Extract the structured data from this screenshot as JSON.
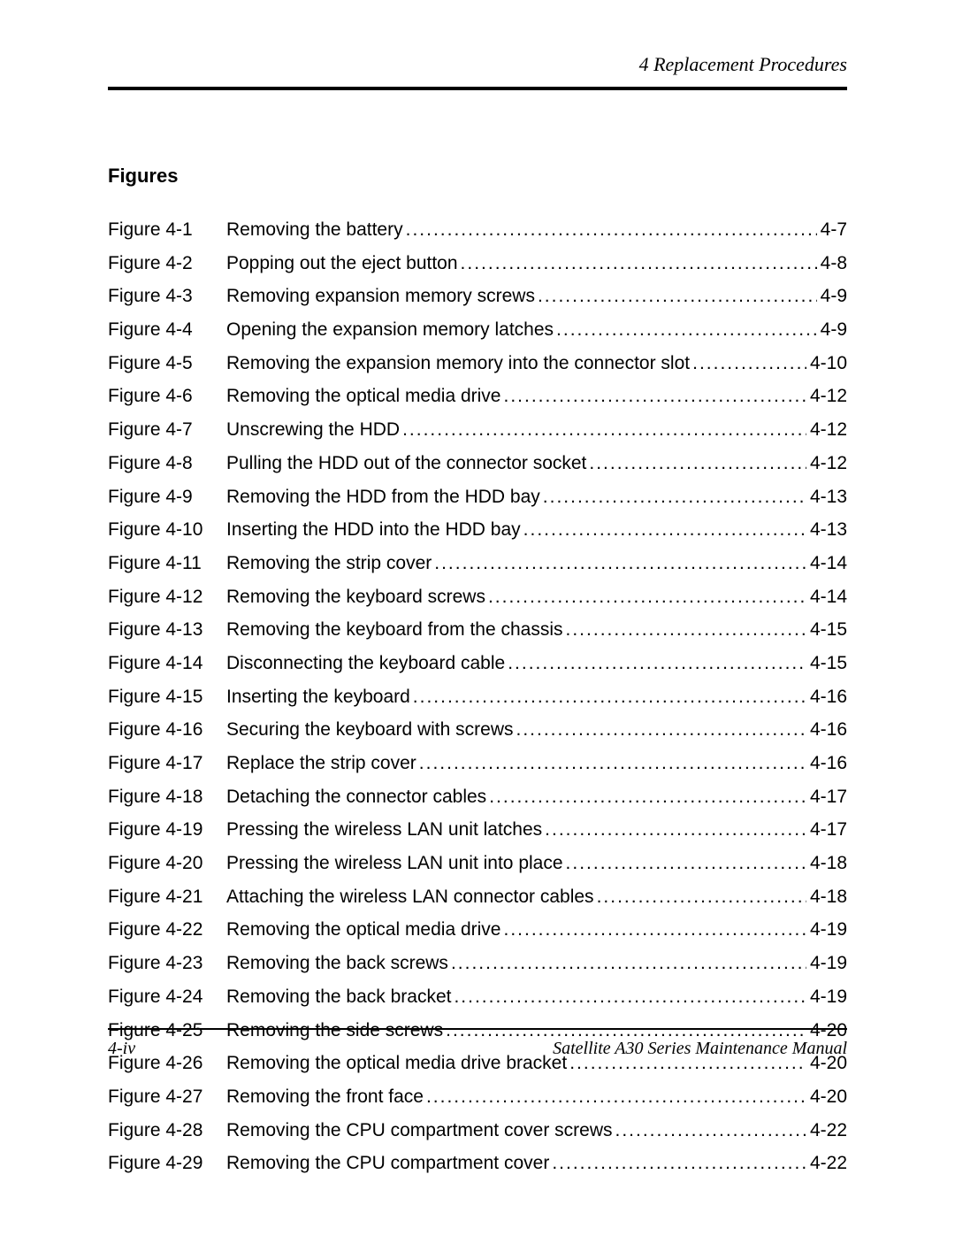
{
  "header": {
    "chapter_title": "4  Replacement Procedures"
  },
  "section": {
    "heading": "Figures"
  },
  "toc": {
    "entries": [
      {
        "label": "Figure 4-1",
        "title": "Removing the battery",
        "page": "4-7"
      },
      {
        "label": "Figure 4-2",
        "title": "Popping out the eject button",
        "page": "4-8"
      },
      {
        "label": "Figure 4-3",
        "title": "Removing expansion memory screws",
        "page": "4-9"
      },
      {
        "label": "Figure 4-4",
        "title": "Opening the expansion memory latches",
        "page": "4-9"
      },
      {
        "label": "Figure 4-5",
        "title": "Removing the expansion memory into the connector slot",
        "page": "4-10"
      },
      {
        "label": "Figure 4-6",
        "title": "Removing the optical media drive",
        "page": "4-12"
      },
      {
        "label": "Figure 4-7",
        "title": "Unscrewing the HDD",
        "page": "4-12"
      },
      {
        "label": "Figure 4-8",
        "title": "Pulling the HDD out of the connector socket",
        "page": "4-12"
      },
      {
        "label": "Figure 4-9",
        "title": "Removing the HDD from the HDD bay",
        "page": "4-13"
      },
      {
        "label": "Figure 4-10",
        "title": "Inserting the HDD into the HDD bay",
        "page": "4-13"
      },
      {
        "label": "Figure 4-11",
        "title": "Removing the strip cover",
        "page": "4-14"
      },
      {
        "label": "Figure 4-12",
        "title": "Removing the keyboard screws",
        "page": "4-14"
      },
      {
        "label": "Figure 4-13",
        "title": "Removing the keyboard from the chassis",
        "page": "4-15"
      },
      {
        "label": "Figure 4-14",
        "title": "Disconnecting the keyboard cable",
        "page": "4-15"
      },
      {
        "label": "Figure 4-15",
        "title": "Inserting the keyboard",
        "page": "4-16"
      },
      {
        "label": "Figure 4-16",
        "title": "Securing the keyboard with screws",
        "page": "4-16"
      },
      {
        "label": "Figure 4-17",
        "title": "Replace the strip cover",
        "page": "4-16"
      },
      {
        "label": "Figure 4-18",
        "title": "Detaching the connector cables",
        "page": "4-17"
      },
      {
        "label": "Figure 4-19",
        "title": "Pressing the wireless LAN unit latches",
        "page": "4-17"
      },
      {
        "label": "Figure 4-20",
        "title": "Pressing the wireless LAN unit into place",
        "page": "4-18"
      },
      {
        "label": "Figure 4-21",
        "title": "Attaching the wireless LAN connector cables",
        "page": "4-18"
      },
      {
        "label": "Figure 4-22",
        "title": "Removing the optical media drive",
        "page": "4-19"
      },
      {
        "label": "Figure 4-23",
        "title": "Removing the back screws",
        "page": "4-19"
      },
      {
        "label": "Figure 4-24",
        "title": "Removing the back bracket",
        "page": "4-19"
      },
      {
        "label": "Figure 4-25",
        "title": "Removing the side screws",
        "page": "4-20"
      },
      {
        "label": "Figure 4-26",
        "title": "Removing the optical media drive bracket",
        "page": "4-20"
      },
      {
        "label": "Figure 4-27",
        "title": "Removing the front face",
        "page": "4-20"
      },
      {
        "label": "Figure 4-28",
        "title": "Removing the CPU compartment cover screws",
        "page": "4-22"
      },
      {
        "label": "Figure 4-29",
        "title": "Removing the CPU compartment cover",
        "page": "4-22"
      }
    ]
  },
  "footer": {
    "left": "4-iv",
    "right": "Satellite A30 Series Maintenance Manual"
  }
}
